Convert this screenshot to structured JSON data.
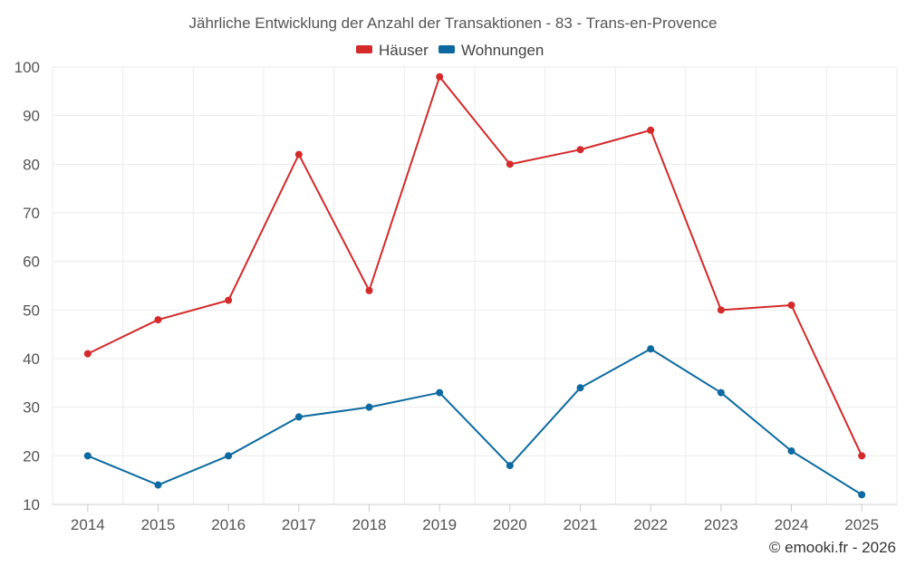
{
  "chart_data": {
    "type": "line",
    "title": "Jährliche Entwicklung der Anzahl der Transaktionen - 83 - Trans-en-Provence",
    "categories": [
      "2014",
      "2015",
      "2016",
      "2017",
      "2018",
      "2019",
      "2020",
      "2021",
      "2022",
      "2023",
      "2024",
      "2025"
    ],
    "series": [
      {
        "name": "Häuser",
        "color": "#d42a2a",
        "values": [
          41,
          48,
          52,
          82,
          54,
          98,
          80,
          83,
          87,
          50,
          51,
          20
        ]
      },
      {
        "name": "Wohnungen",
        "color": "#0d6aa0",
        "values": [
          20,
          14,
          20,
          28,
          30,
          33,
          18,
          34,
          42,
          33,
          21,
          12
        ]
      }
    ],
    "ylim": [
      10,
      100
    ],
    "yticks": [
      "10",
      "20",
      "30",
      "40",
      "50",
      "60",
      "70",
      "80",
      "90",
      "100"
    ],
    "xlabel": "",
    "ylabel": "",
    "grid": true,
    "legend_position": "top-center"
  },
  "credit": "© emooki.fr - 2026"
}
